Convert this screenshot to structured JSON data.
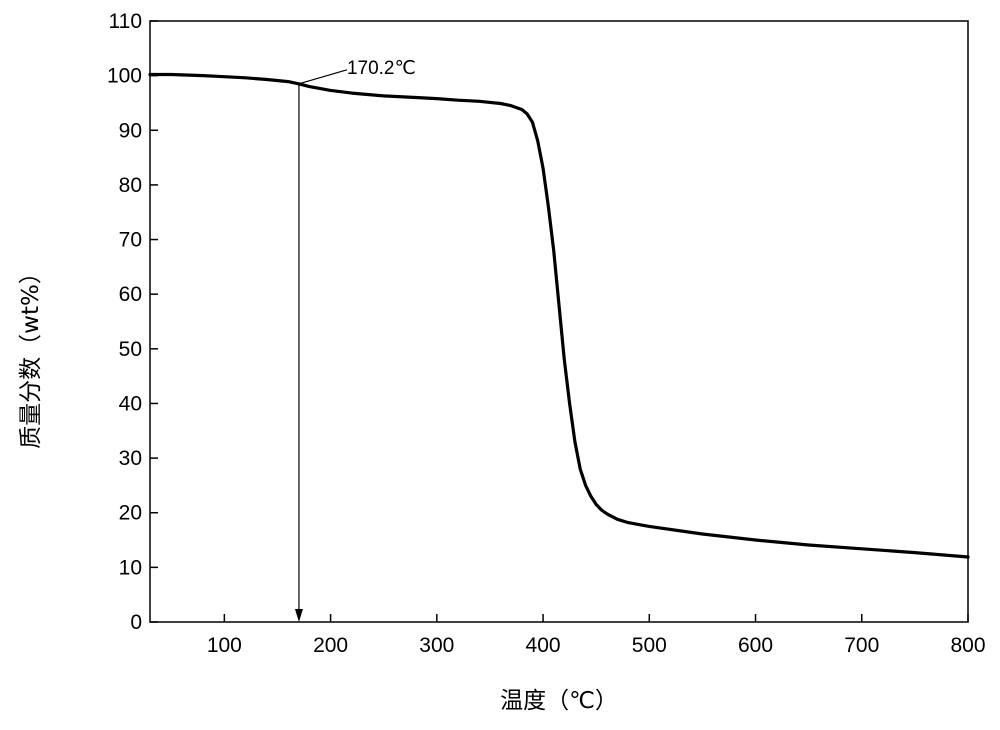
{
  "chart_data": {
    "type": "line",
    "title": "",
    "xlabel": "温度（℃）",
    "ylabel": "质量分数（wt%）",
    "xlim": [
      30,
      800
    ],
    "ylim": [
      0,
      110
    ],
    "xticks": [
      100,
      200,
      300,
      400,
      500,
      600,
      700,
      800
    ],
    "yticks": [
      0,
      10,
      20,
      30,
      40,
      50,
      60,
      70,
      80,
      90,
      100,
      110
    ],
    "grid": false,
    "legend": "none",
    "series": [
      {
        "color": "#000000",
        "x": [
          30,
          50,
          80,
          100,
          120,
          140,
          160,
          170,
          180,
          200,
          220,
          250,
          280,
          300,
          320,
          340,
          360,
          370,
          380,
          385,
          390,
          395,
          400,
          405,
          410,
          415,
          420,
          425,
          430,
          435,
          440,
          445,
          450,
          455,
          460,
          470,
          480,
          500,
          550,
          600,
          650,
          700,
          750,
          800
        ],
        "y": [
          100.2,
          100.2,
          100.0,
          99.8,
          99.6,
          99.3,
          98.9,
          98.5,
          98.0,
          97.3,
          96.8,
          96.3,
          96.0,
          95.8,
          95.5,
          95.3,
          94.9,
          94.5,
          93.8,
          93.0,
          91.5,
          88.0,
          83.0,
          76.0,
          68.0,
          58.0,
          48.0,
          40.0,
          33.0,
          28.0,
          25.0,
          23.0,
          21.5,
          20.5,
          19.8,
          18.8,
          18.2,
          17.5,
          16.1,
          15.0,
          14.1,
          13.4,
          12.7,
          11.9
        ]
      }
    ],
    "annotations": [
      {
        "label": "170.2℃",
        "x": 170.2,
        "y": 98.5
      }
    ]
  }
}
